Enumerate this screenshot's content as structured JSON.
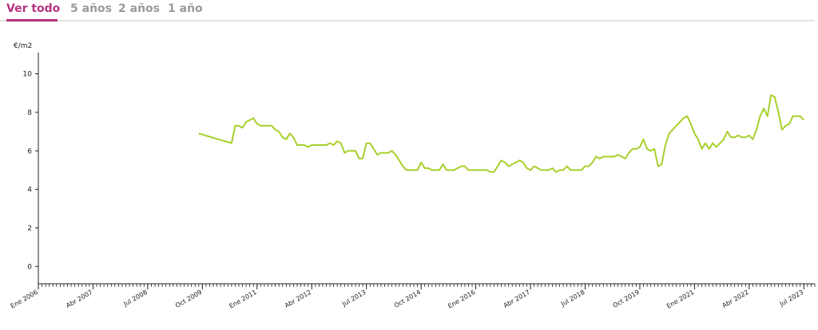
{
  "tabs": [
    {
      "label": "Ver todo",
      "active": true
    },
    {
      "label": "5 años",
      "active": false
    },
    {
      "label": "2 años",
      "active": false
    },
    {
      "label": "1 año",
      "active": false
    }
  ],
  "colors": {
    "accent": "#b5337f",
    "line": "#a8cf2b",
    "inactive_tab": "#9a9a9a"
  },
  "chart_data": {
    "type": "line",
    "title": "",
    "unit_label": "€/m2",
    "xlabel": "",
    "ylabel": "€/m2",
    "ylim": [
      -0.9,
      11.1
    ],
    "yticks": [
      0,
      2,
      4,
      6,
      8,
      10
    ],
    "xlim": [
      "2006-01",
      "2023-10"
    ],
    "xticks": [
      {
        "date": "2006-01",
        "label": "Ene 2006"
      },
      {
        "date": "2007-04",
        "label": "Abr 2007"
      },
      {
        "date": "2008-07",
        "label": "Jul 2008"
      },
      {
        "date": "2009-10",
        "label": "Oct 2009"
      },
      {
        "date": "2011-01",
        "label": "Ene 2011"
      },
      {
        "date": "2012-04",
        "label": "Abr 2012"
      },
      {
        "date": "2013-07",
        "label": "Jul 2013"
      },
      {
        "date": "2014-10",
        "label": "Oct 2014"
      },
      {
        "date": "2016-01",
        "label": "Ene 2016"
      },
      {
        "date": "2017-04",
        "label": "Abr 2017"
      },
      {
        "date": "2018-07",
        "label": "Jul 2018"
      },
      {
        "date": "2019-10",
        "label": "Oct 2019"
      },
      {
        "date": "2021-01",
        "label": "Ene 2021"
      },
      {
        "date": "2022-04",
        "label": "Abr 2022"
      },
      {
        "date": "2023-07",
        "label": "Jul 2023"
      }
    ],
    "grid": false,
    "series": [
      {
        "color": "#a8cf2b",
        "points": [
          [
            "2009-09",
            6.9
          ],
          [
            "2010-06",
            6.4
          ],
          [
            "2010-07",
            7.3
          ],
          [
            "2010-08",
            7.3
          ],
          [
            "2010-09",
            7.2
          ],
          [
            "2010-10",
            7.5
          ],
          [
            "2010-11",
            7.6
          ],
          [
            "2010-12",
            7.7
          ],
          [
            "2011-01",
            7.4
          ],
          [
            "2011-02",
            7.3
          ],
          [
            "2011-03",
            7.3
          ],
          [
            "2011-04",
            7.3
          ],
          [
            "2011-05",
            7.3
          ],
          [
            "2011-06",
            7.1
          ],
          [
            "2011-07",
            7.0
          ],
          [
            "2011-08",
            6.7
          ],
          [
            "2011-09",
            6.6
          ],
          [
            "2011-10",
            6.9
          ],
          [
            "2011-11",
            6.7
          ],
          [
            "2011-12",
            6.3
          ],
          [
            "2012-01",
            6.3
          ],
          [
            "2012-02",
            6.3
          ],
          [
            "2012-03",
            6.2
          ],
          [
            "2012-04",
            6.3
          ],
          [
            "2012-05",
            6.3
          ],
          [
            "2012-06",
            6.3
          ],
          [
            "2012-07",
            6.3
          ],
          [
            "2012-08",
            6.3
          ],
          [
            "2012-09",
            6.4
          ],
          [
            "2012-10",
            6.3
          ],
          [
            "2012-11",
            6.5
          ],
          [
            "2012-12",
            6.4
          ],
          [
            "2013-01",
            5.9
          ],
          [
            "2013-02",
            6.0
          ],
          [
            "2013-03",
            6.0
          ],
          [
            "2013-04",
            6.0
          ],
          [
            "2013-05",
            5.6
          ],
          [
            "2013-06",
            5.6
          ],
          [
            "2013-07",
            6.4
          ],
          [
            "2013-08",
            6.4
          ],
          [
            "2013-09",
            6.1
          ],
          [
            "2013-10",
            5.8
          ],
          [
            "2013-11",
            5.9
          ],
          [
            "2013-12",
            5.9
          ],
          [
            "2014-01",
            5.9
          ],
          [
            "2014-02",
            6.0
          ],
          [
            "2014-03",
            5.8
          ],
          [
            "2014-04",
            5.5
          ],
          [
            "2014-05",
            5.2
          ],
          [
            "2014-06",
            5.0
          ],
          [
            "2014-07",
            5.0
          ],
          [
            "2014-08",
            5.0
          ],
          [
            "2014-09",
            5.0
          ],
          [
            "2014-10",
            5.4
          ],
          [
            "2014-11",
            5.1
          ],
          [
            "2014-12",
            5.1
          ],
          [
            "2015-01",
            5.0
          ],
          [
            "2015-02",
            5.0
          ],
          [
            "2015-03",
            5.0
          ],
          [
            "2015-04",
            5.3
          ],
          [
            "2015-05",
            5.0
          ],
          [
            "2015-06",
            5.0
          ],
          [
            "2015-07",
            5.0
          ],
          [
            "2015-08",
            5.1
          ],
          [
            "2015-09",
            5.2
          ],
          [
            "2015-10",
            5.2
          ],
          [
            "2015-11",
            5.0
          ],
          [
            "2015-12",
            5.0
          ],
          [
            "2016-01",
            5.0
          ],
          [
            "2016-02",
            5.0
          ],
          [
            "2016-03",
            5.0
          ],
          [
            "2016-04",
            5.0
          ],
          [
            "2016-05",
            4.9
          ],
          [
            "2016-06",
            4.9
          ],
          [
            "2016-07",
            5.2
          ],
          [
            "2016-08",
            5.5
          ],
          [
            "2016-09",
            5.4
          ],
          [
            "2016-10",
            5.2
          ],
          [
            "2016-11",
            5.3
          ],
          [
            "2016-12",
            5.4
          ],
          [
            "2017-01",
            5.5
          ],
          [
            "2017-02",
            5.4
          ],
          [
            "2017-03",
            5.1
          ],
          [
            "2017-04",
            5.0
          ],
          [
            "2017-05",
            5.2
          ],
          [
            "2017-06",
            5.1
          ],
          [
            "2017-07",
            5.0
          ],
          [
            "2017-08",
            5.0
          ],
          [
            "2017-09",
            5.0
          ],
          [
            "2017-10",
            5.1
          ],
          [
            "2017-11",
            4.9
          ],
          [
            "2017-12",
            5.0
          ],
          [
            "2018-01",
            5.0
          ],
          [
            "2018-02",
            5.2
          ],
          [
            "2018-03",
            5.0
          ],
          [
            "2018-04",
            5.0
          ],
          [
            "2018-05",
            5.0
          ],
          [
            "2018-06",
            5.0
          ],
          [
            "2018-07",
            5.2
          ],
          [
            "2018-08",
            5.2
          ],
          [
            "2018-09",
            5.4
          ],
          [
            "2018-10",
            5.7
          ],
          [
            "2018-11",
            5.6
          ],
          [
            "2018-12",
            5.7
          ],
          [
            "2019-01",
            5.7
          ],
          [
            "2019-02",
            5.7
          ],
          [
            "2019-03",
            5.7
          ],
          [
            "2019-04",
            5.8
          ],
          [
            "2019-05",
            5.7
          ],
          [
            "2019-06",
            5.6
          ],
          [
            "2019-07",
            5.9
          ],
          [
            "2019-08",
            6.1
          ],
          [
            "2019-09",
            6.1
          ],
          [
            "2019-10",
            6.2
          ],
          [
            "2019-11",
            6.6
          ],
          [
            "2019-12",
            6.1
          ],
          [
            "2020-01",
            6.0
          ],
          [
            "2020-02",
            6.1
          ],
          [
            "2020-03",
            5.2
          ],
          [
            "2020-04",
            5.3
          ],
          [
            "2020-05",
            6.3
          ],
          [
            "2020-06",
            6.9
          ],
          [
            "2020-07",
            7.1
          ],
          [
            "2020-08",
            7.3
          ],
          [
            "2020-09",
            7.5
          ],
          [
            "2020-10",
            7.7
          ],
          [
            "2020-11",
            7.8
          ],
          [
            "2020-12",
            7.4
          ],
          [
            "2021-01",
            6.9
          ],
          [
            "2021-02",
            6.6
          ],
          [
            "2021-03",
            6.1
          ],
          [
            "2021-04",
            6.4
          ],
          [
            "2021-05",
            6.1
          ],
          [
            "2021-06",
            6.4
          ],
          [
            "2021-07",
            6.2
          ],
          [
            "2021-08",
            6.4
          ],
          [
            "2021-09",
            6.6
          ],
          [
            "2021-10",
            7.0
          ],
          [
            "2021-11",
            6.7
          ],
          [
            "2021-12",
            6.7
          ],
          [
            "2022-01",
            6.8
          ],
          [
            "2022-02",
            6.7
          ],
          [
            "2022-03",
            6.7
          ],
          [
            "2022-04",
            6.8
          ],
          [
            "2022-05",
            6.6
          ],
          [
            "2022-06",
            7.1
          ],
          [
            "2022-07",
            7.8
          ],
          [
            "2022-08",
            8.2
          ],
          [
            "2022-09",
            7.8
          ],
          [
            "2022-10",
            8.9
          ],
          [
            "2022-11",
            8.8
          ],
          [
            "2022-12",
            8.0
          ],
          [
            "2023-01",
            7.1
          ],
          [
            "2023-02",
            7.3
          ],
          [
            "2023-03",
            7.4
          ],
          [
            "2023-04",
            7.8
          ],
          [
            "2023-05",
            7.8
          ],
          [
            "2023-06",
            7.8
          ],
          [
            "2023-07",
            7.6
          ]
        ]
      }
    ]
  }
}
